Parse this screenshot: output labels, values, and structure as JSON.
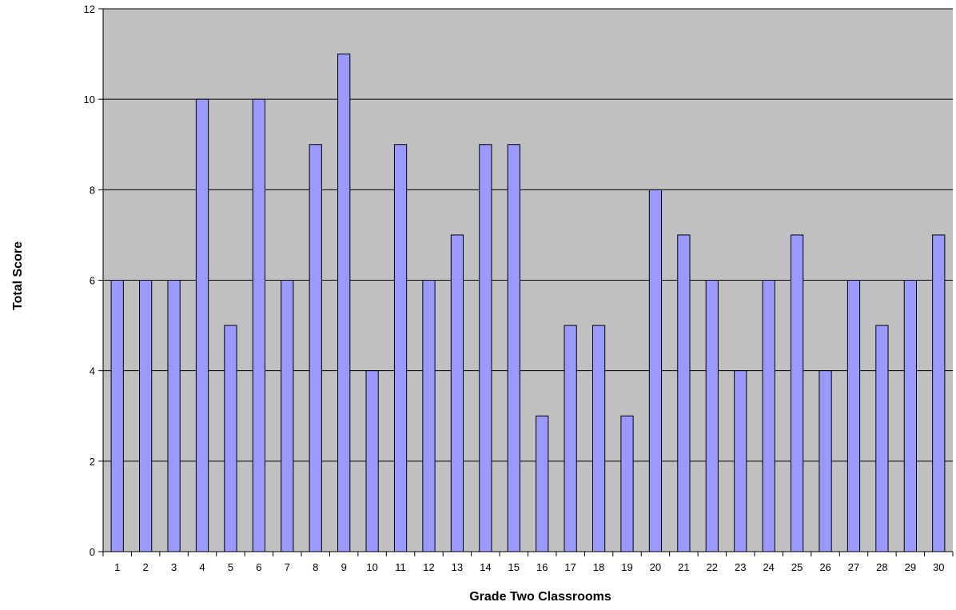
{
  "chart_data": {
    "type": "bar",
    "title": "",
    "xlabel": "Grade Two Classrooms",
    "ylabel": "Total Score",
    "categories": [
      "1",
      "2",
      "3",
      "4",
      "5",
      "6",
      "7",
      "8",
      "9",
      "10",
      "11",
      "12",
      "13",
      "14",
      "15",
      "16",
      "17",
      "18",
      "19",
      "20",
      "21",
      "22",
      "23",
      "24",
      "25",
      "26",
      "27",
      "28",
      "29",
      "30"
    ],
    "values": [
      6,
      6,
      6,
      10,
      5,
      10,
      6,
      9,
      11,
      4,
      9,
      6,
      7,
      9,
      9,
      3,
      5,
      5,
      3,
      8,
      7,
      6,
      4,
      6,
      7,
      4,
      6,
      5,
      6,
      7
    ],
    "ylim": [
      0,
      12
    ],
    "yticks": [
      "0",
      "2",
      "4",
      "6",
      "8",
      "10",
      "12"
    ],
    "grid": true,
    "legend": "none",
    "colors": {
      "plot_background": "#c0c0c0",
      "bar_fill": "#9999ff",
      "bar_stroke": "#000000",
      "gridline": "#000000"
    }
  }
}
